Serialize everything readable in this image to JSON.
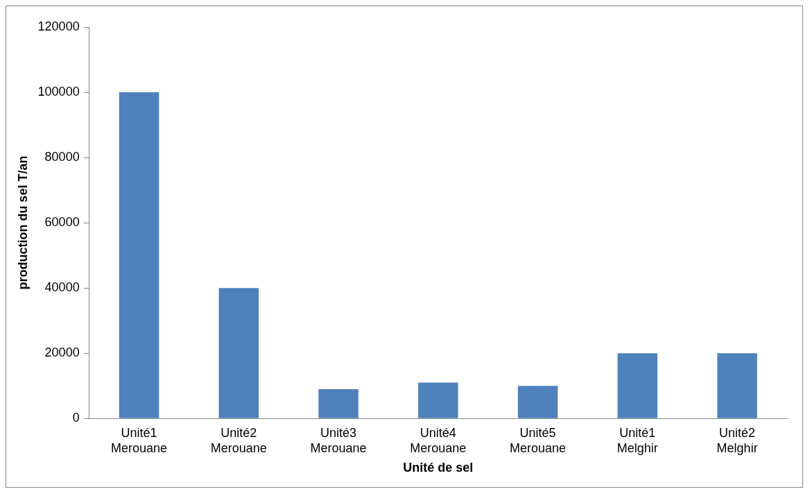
{
  "chart_data": {
    "type": "bar",
    "xlabel": "Unité de sel",
    "ylabel": "production du sel T/an",
    "categories": [
      "Unité1 Merouane",
      "Unité2 Merouane",
      "Unité3 Merouane",
      "Unité4 Merouane",
      "Unité5 Merouane",
      "Unité1 Melghir",
      "Unité2 Melghir"
    ],
    "values": [
      100000,
      40000,
      9000,
      11000,
      10000,
      20000,
      20000
    ],
    "color": "#4f81bd",
    "ylim": [
      0,
      120000
    ],
    "yticks": [
      0,
      20000,
      40000,
      60000,
      80000,
      100000,
      120000
    ],
    "grid": false,
    "legend": false
  }
}
